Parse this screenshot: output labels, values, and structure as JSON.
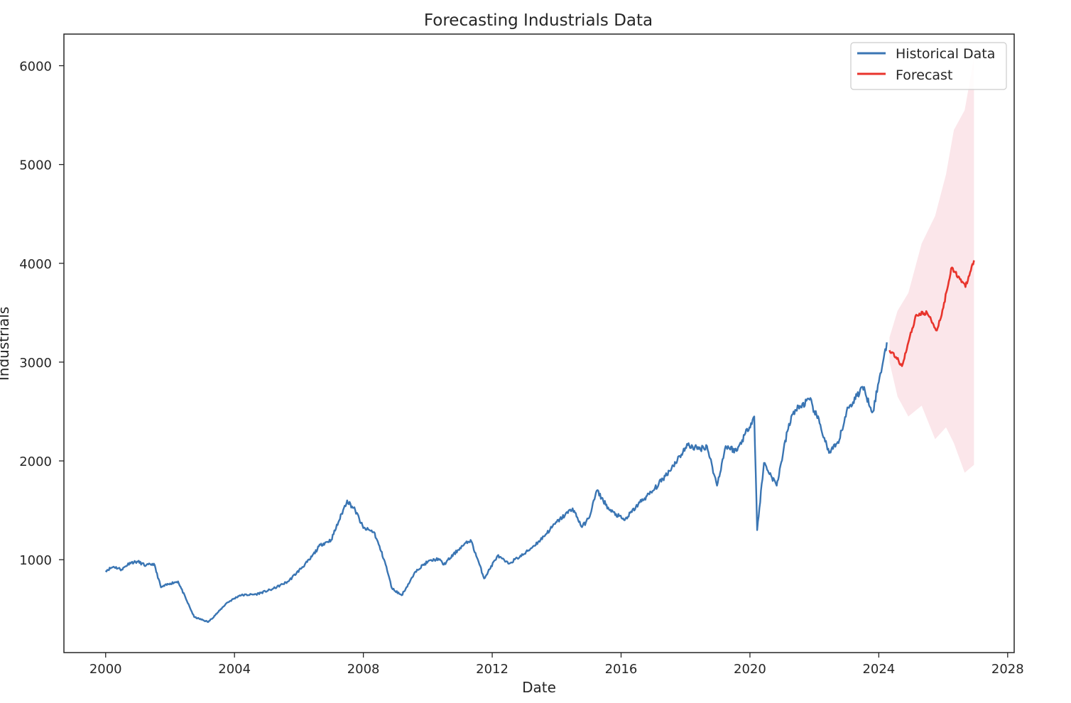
{
  "chart_data": {
    "type": "line",
    "title": "Forecasting Industrials Data",
    "xlabel": "Date",
    "ylabel": "Industrials",
    "x_is_date": true,
    "xlim": [
      "1998-09-15",
      "2028-03-15"
    ],
    "ylim": [
      60,
      6320
    ],
    "x_ticks": [
      "2000-01-01",
      "2004-01-01",
      "2008-01-01",
      "2012-01-01",
      "2016-01-01",
      "2020-01-01",
      "2024-01-01",
      "2028-01-01"
    ],
    "x_tick_labels": [
      "2000",
      "2004",
      "2008",
      "2012",
      "2016",
      "2020",
      "2024",
      "2028"
    ],
    "y_ticks": [
      1000,
      2000,
      3000,
      4000,
      5000,
      6000
    ],
    "y_tick_labels": [
      "1000",
      "2000",
      "3000",
      "4000",
      "5000",
      "6000"
    ],
    "grid": false,
    "legend_position": "top-right",
    "series": [
      {
        "name": "Historical Data",
        "color": "#3a75b3",
        "points": [
          [
            "2000-01-01",
            890
          ],
          [
            "2000-04-01",
            930
          ],
          [
            "2000-07-01",
            900
          ],
          [
            "2000-10-01",
            970
          ],
          [
            "2001-01-01",
            980
          ],
          [
            "2001-04-01",
            940
          ],
          [
            "2001-07-01",
            960
          ],
          [
            "2001-09-20",
            720
          ],
          [
            "2002-01-01",
            760
          ],
          [
            "2002-04-01",
            780
          ],
          [
            "2002-07-01",
            600
          ],
          [
            "2002-10-01",
            420
          ],
          [
            "2003-03-10",
            370
          ],
          [
            "2003-07-01",
            470
          ],
          [
            "2003-10-01",
            560
          ],
          [
            "2004-03-01",
            640
          ],
          [
            "2004-09-01",
            650
          ],
          [
            "2005-03-01",
            700
          ],
          [
            "2005-09-01",
            780
          ],
          [
            "2006-05-01",
            1000
          ],
          [
            "2006-09-01",
            1150
          ],
          [
            "2007-01-01",
            1200
          ],
          [
            "2007-07-01",
            1600
          ],
          [
            "2007-10-01",
            1500
          ],
          [
            "2008-01-01",
            1320
          ],
          [
            "2008-05-01",
            1280
          ],
          [
            "2008-09-01",
            980
          ],
          [
            "2008-11-20",
            710
          ],
          [
            "2009-03-10",
            640
          ],
          [
            "2009-09-01",
            900
          ],
          [
            "2010-01-01",
            980
          ],
          [
            "2010-05-01",
            1010
          ],
          [
            "2010-07-01",
            950
          ],
          [
            "2011-01-01",
            1120
          ],
          [
            "2011-05-01",
            1200
          ],
          [
            "2011-08-10",
            950
          ],
          [
            "2011-10-01",
            810
          ],
          [
            "2012-03-01",
            1040
          ],
          [
            "2012-07-01",
            960
          ],
          [
            "2013-01-01",
            1060
          ],
          [
            "2013-07-01",
            1200
          ],
          [
            "2014-01-01",
            1380
          ],
          [
            "2014-07-01",
            1520
          ],
          [
            "2014-10-15",
            1330
          ],
          [
            "2015-01-01",
            1420
          ],
          [
            "2015-04-01",
            1700
          ],
          [
            "2015-08-25",
            1500
          ],
          [
            "2016-02-11",
            1400
          ],
          [
            "2016-08-01",
            1580
          ],
          [
            "2017-01-01",
            1700
          ],
          [
            "2017-07-01",
            1900
          ],
          [
            "2018-01-26",
            2160
          ],
          [
            "2018-06-01",
            2120
          ],
          [
            "2018-09-01",
            2150
          ],
          [
            "2018-12-24",
            1750
          ],
          [
            "2019-04-01",
            2150
          ],
          [
            "2019-08-01",
            2100
          ],
          [
            "2020-02-19",
            2450
          ],
          [
            "2020-03-23",
            1300
          ],
          [
            "2020-06-08",
            1980
          ],
          [
            "2020-10-30",
            1750
          ],
          [
            "2021-03-01",
            2300
          ],
          [
            "2021-05-10",
            2500
          ],
          [
            "2021-11-08",
            2620
          ],
          [
            "2022-03-01",
            2380
          ],
          [
            "2022-06-16",
            2080
          ],
          [
            "2022-10-01",
            2180
          ],
          [
            "2023-01-01",
            2500
          ],
          [
            "2023-07-01",
            2750
          ],
          [
            "2023-10-27",
            2500
          ],
          [
            "2024-01-01",
            2800
          ],
          [
            "2024-04-01",
            3200
          ]
        ]
      },
      {
        "name": "Forecast",
        "color": "#e8342c",
        "points": [
          [
            "2024-05-01",
            3120
          ],
          [
            "2024-07-15",
            3050
          ],
          [
            "2024-09-20",
            2960
          ],
          [
            "2024-12-01",
            3200
          ],
          [
            "2025-03-01",
            3480
          ],
          [
            "2025-07-01",
            3500
          ],
          [
            "2025-10-20",
            3320
          ],
          [
            "2026-01-01",
            3550
          ],
          [
            "2026-04-01",
            3950
          ],
          [
            "2026-07-01",
            3860
          ],
          [
            "2026-09-10",
            3760
          ],
          [
            "2026-12-15",
            4030
          ]
        ],
        "interval": {
          "upper": [
            [
              "2024-05-01",
              3250
            ],
            [
              "2024-08-01",
              3520
            ],
            [
              "2024-12-01",
              3700
            ],
            [
              "2025-05-01",
              4200
            ],
            [
              "2025-10-01",
              4480
            ],
            [
              "2026-02-01",
              4900
            ],
            [
              "2026-05-01",
              5350
            ],
            [
              "2026-09-01",
              5550
            ],
            [
              "2026-12-15",
              6080
            ]
          ],
          "lower": [
            [
              "2024-05-01",
              3000
            ],
            [
              "2024-08-01",
              2650
            ],
            [
              "2024-12-01",
              2450
            ],
            [
              "2025-05-01",
              2560
            ],
            [
              "2025-10-01",
              2220
            ],
            [
              "2026-02-01",
              2340
            ],
            [
              "2026-05-01",
              2180
            ],
            [
              "2026-09-01",
              1880
            ],
            [
              "2026-12-15",
              1960
            ]
          ],
          "color": "#fbe6ea"
        }
      }
    ]
  }
}
